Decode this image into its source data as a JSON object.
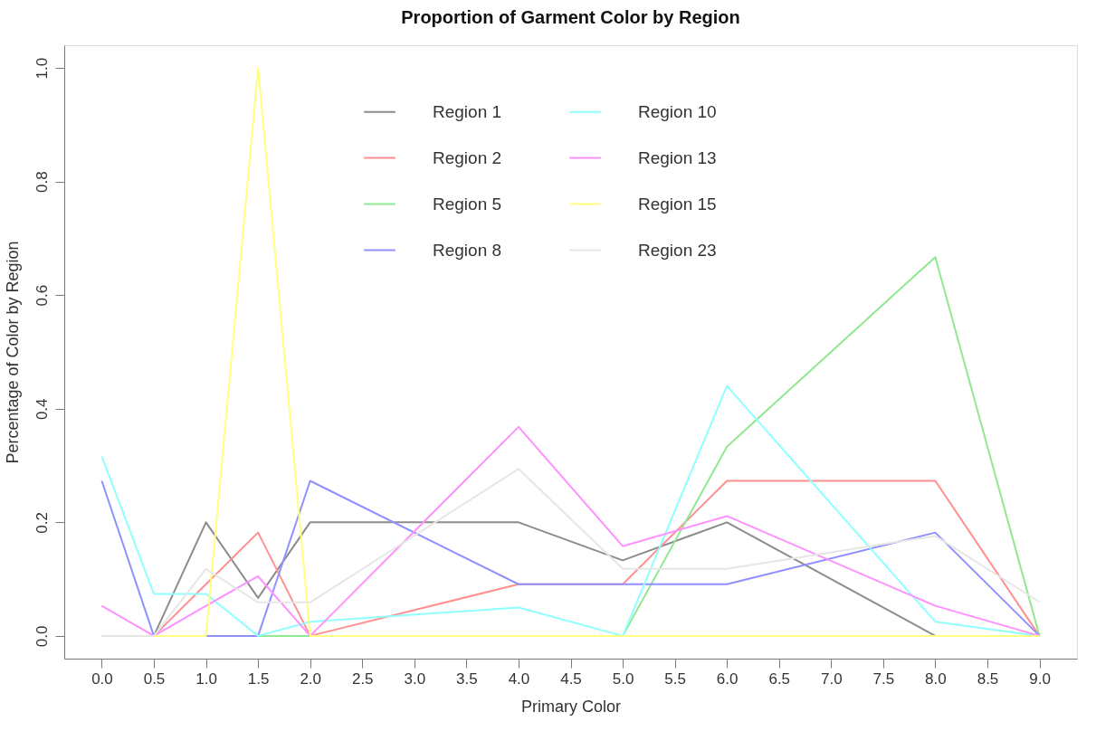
{
  "chart_data": {
    "type": "line",
    "title": "Proportion of Garment Color by Region",
    "xlabel": "Primary Color",
    "ylabel": "Percentage of Color by Region",
    "x": [
      0,
      0.5,
      1,
      1.5,
      2,
      4,
      5,
      6,
      8,
      9
    ],
    "series": [
      {
        "name": "Region 1",
        "color": "#8c8c8c",
        "values": [
          0,
          0,
          0.2,
          0.067,
          0.2,
          0.2,
          0.133,
          0.2,
          0,
          0
        ]
      },
      {
        "name": "Region 2",
        "color": "#ff9090",
        "values": [
          0,
          0,
          0.091,
          0.182,
          0,
          0.091,
          0.091,
          0.273,
          0.273,
          0
        ]
      },
      {
        "name": "Region 5",
        "color": "#90e890",
        "values": [
          0,
          0,
          0,
          0,
          0,
          0,
          0,
          0.333,
          0.667,
          0
        ]
      },
      {
        "name": "Region 8",
        "color": "#9090ff",
        "values": [
          0.273,
          0,
          0,
          0,
          0.273,
          0.091,
          0.091,
          0.091,
          0.182,
          0
        ]
      },
      {
        "name": "Region 10",
        "color": "#90ffff",
        "values": [
          0.316,
          0.074,
          0.074,
          0,
          0.025,
          0.05,
          0,
          0.44,
          0.025,
          0
        ]
      },
      {
        "name": "Region 13",
        "color": "#ff90ff",
        "values": [
          0.053,
          0,
          0.053,
          0.105,
          0,
          0.368,
          0.158,
          0.211,
          0.053,
          0
        ]
      },
      {
        "name": "Region 15",
        "color": "#ffff80",
        "values": [
          0,
          0,
          0,
          1.0,
          0,
          0,
          0,
          0,
          0,
          0
        ]
      },
      {
        "name": "Region 23",
        "color": "#e6e6e6",
        "values": [
          0,
          0,
          0.118,
          0.059,
          0.059,
          0.294,
          0.118,
          0.118,
          0.176,
          0.06
        ]
      }
    ],
    "xlim": [
      -0.36,
      9.36
    ],
    "xticks": [
      {
        "value": 0,
        "label": "0.0"
      },
      0.5,
      {
        "value": 1,
        "label": "1.0"
      },
      1.5,
      {
        "value": 2,
        "label": "2.0"
      },
      2.5,
      {
        "value": 3,
        "label": "3.0"
      },
      3.5,
      {
        "value": 4,
        "label": "4.0"
      },
      4.5,
      {
        "value": 5,
        "label": "5.0"
      },
      5.5,
      {
        "value": 6,
        "label": "6.0"
      },
      6.5,
      {
        "value": 7,
        "label": "7.0"
      },
      7.5,
      {
        "value": 8,
        "label": "8.0"
      },
      8.5,
      {
        "value": 9,
        "label": "9.0"
      }
    ],
    "ylim": [
      -0.04,
      1.04
    ],
    "yticks": [
      {
        "value": 0,
        "label": "0.0"
      },
      0.2,
      0.4,
      0.6,
      0.8,
      {
        "value": 1,
        "label": "1.0"
      }
    ],
    "grid": false,
    "legend": "top",
    "marker": "none",
    "line_style": "solid"
  }
}
